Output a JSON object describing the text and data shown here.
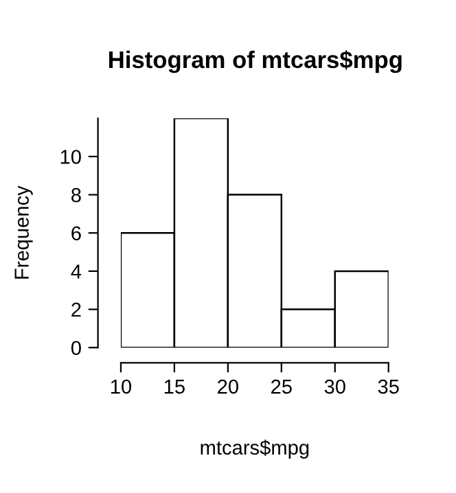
{
  "chart_data": {
    "type": "histogram",
    "title": "Histogram of mtcars$mpg",
    "xlabel": "mtcars$mpg",
    "ylabel": "Frequency",
    "bins": [
      10,
      15,
      20,
      25,
      30,
      35
    ],
    "values": [
      6,
      12,
      8,
      2,
      4
    ],
    "color": "#ffffff",
    "xlim": [
      10,
      35
    ],
    "ylim": [
      0,
      12
    ],
    "xticks": [
      10,
      15,
      20,
      25,
      30,
      35
    ],
    "yticks": [
      0,
      2,
      4,
      6,
      8,
      10
    ],
    "grid": false,
    "legend": false
  }
}
